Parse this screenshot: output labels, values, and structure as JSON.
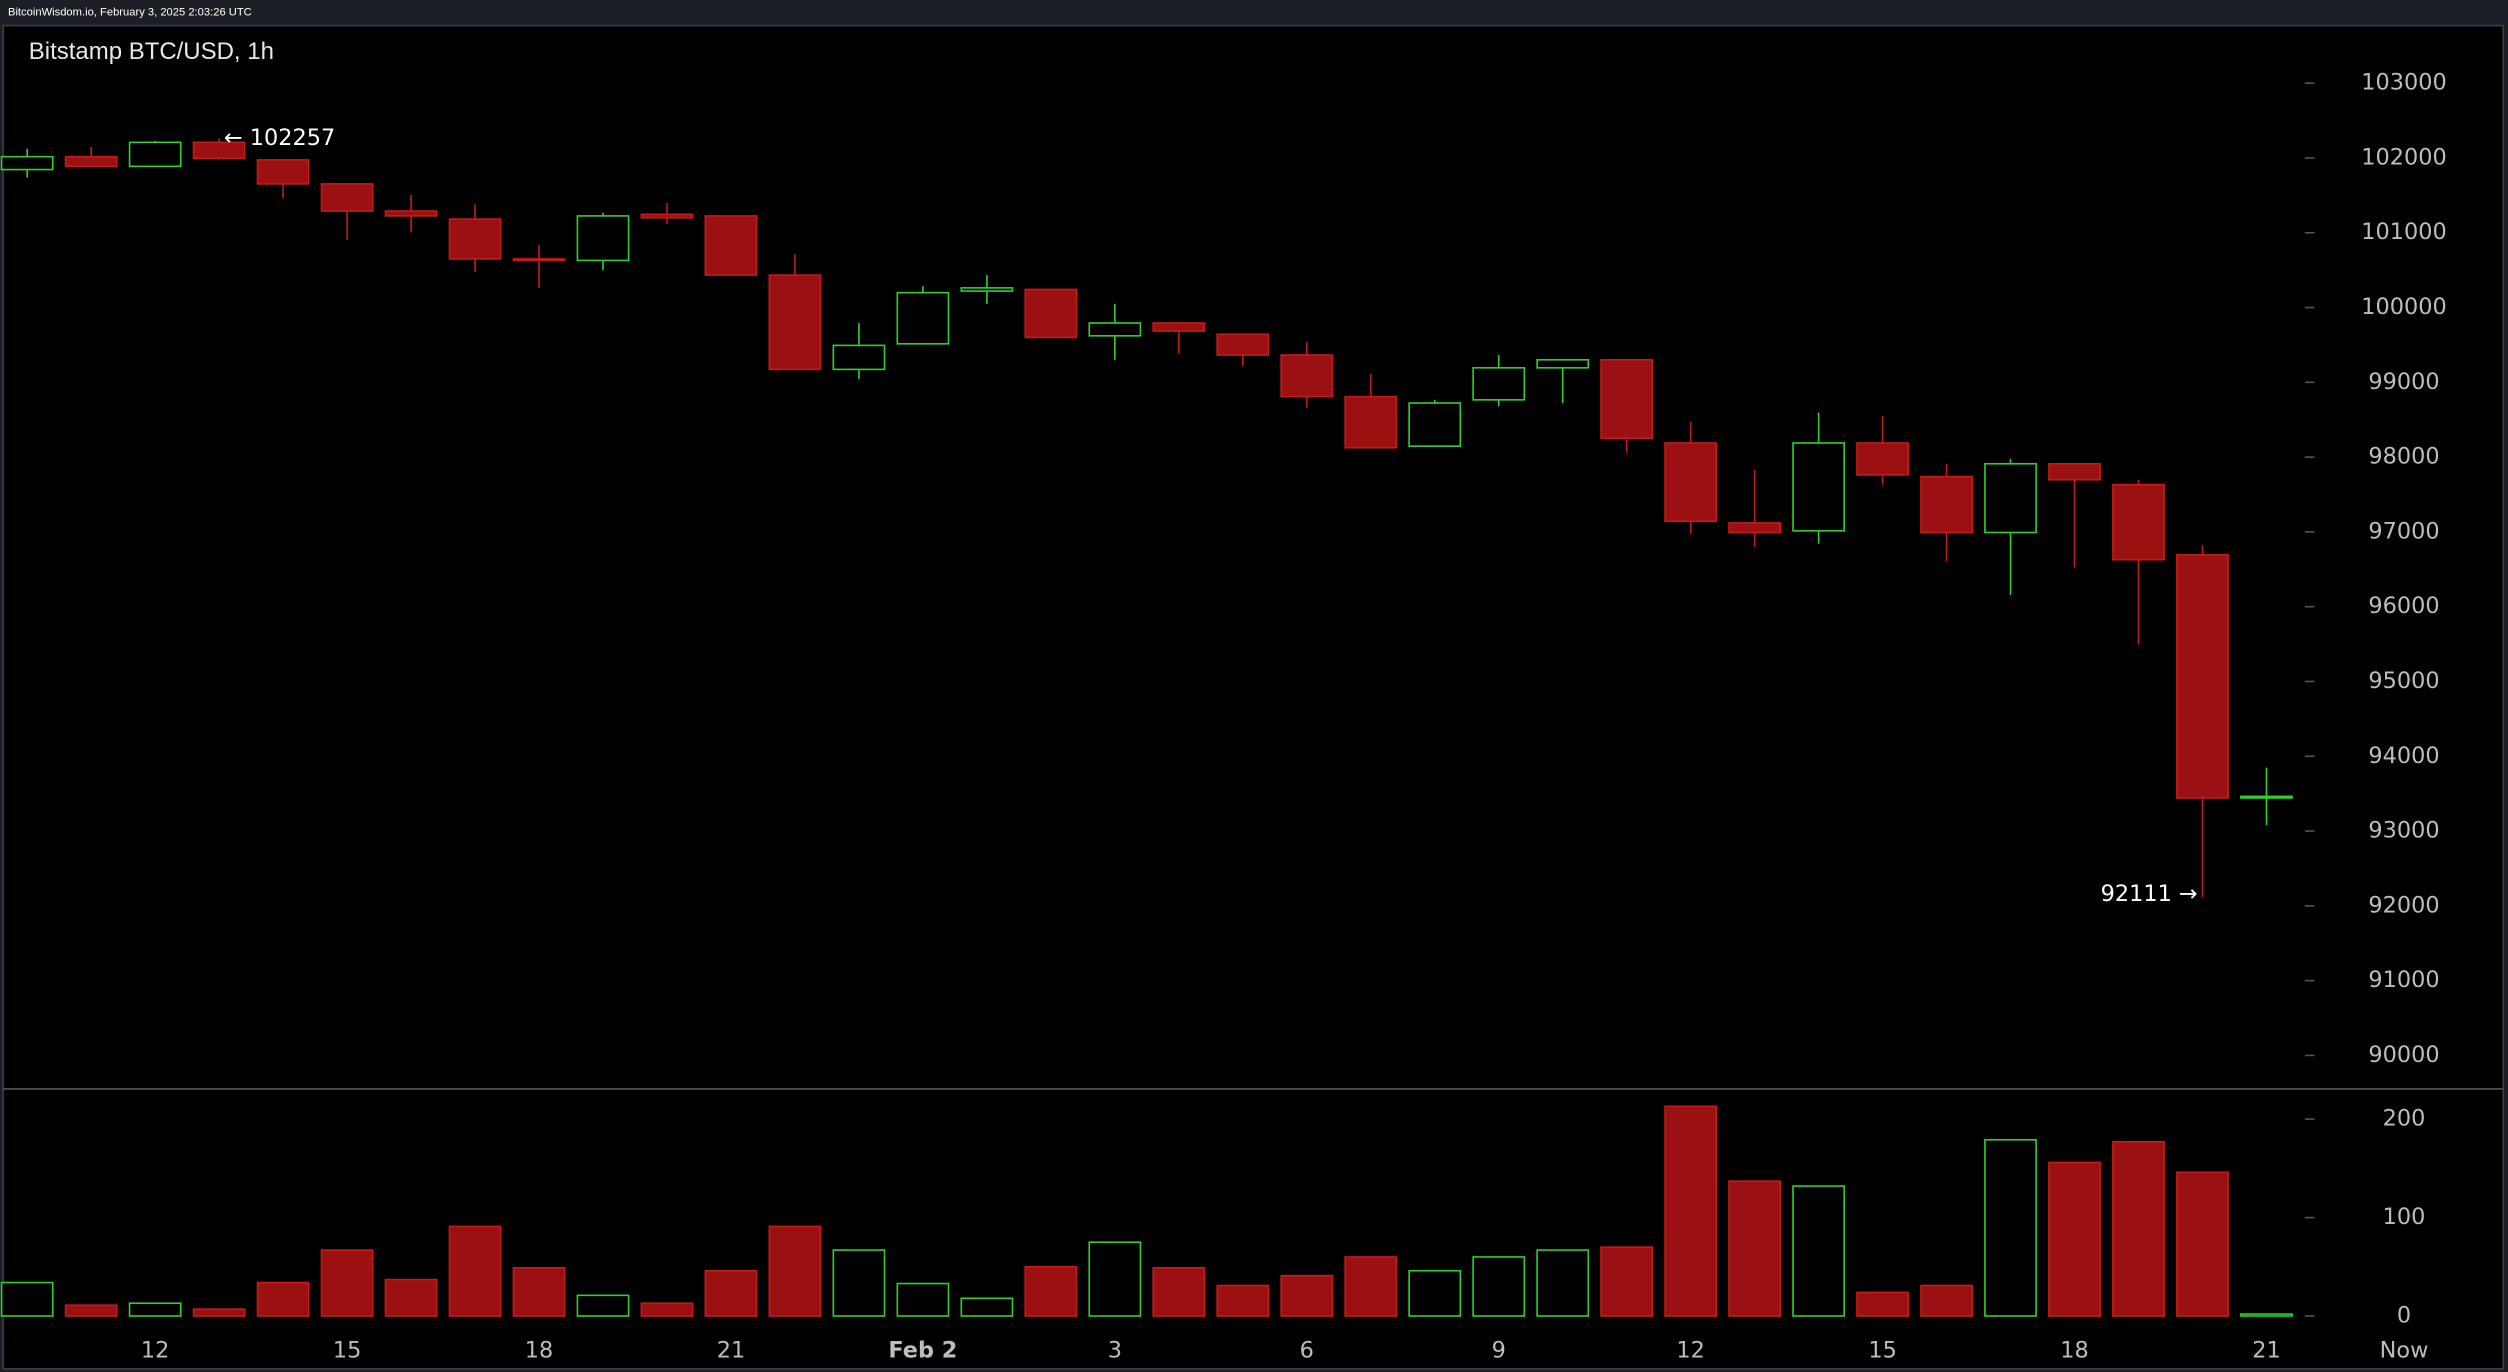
{
  "header": {
    "text": "BitcoinWisdom.io, February 3, 2025 2:03:26 UTC"
  },
  "chart_data": {
    "type": "candlestick",
    "title": "Bitstamp BTC/USD, 1h",
    "categories": [
      null,
      null,
      "12",
      null,
      null,
      "15",
      null,
      null,
      "18",
      null,
      null,
      "21",
      null,
      null,
      "Feb 2",
      null,
      null,
      "3",
      null,
      null,
      "6",
      null,
      null,
      "9",
      null,
      null,
      "12",
      null,
      null,
      "15",
      null,
      null,
      "18",
      null,
      null,
      "21"
    ],
    "now_label": "Now",
    "open": [
      101845,
      102017,
      101888,
      102209,
      101974,
      101653,
      101290,
      101183,
      100650,
      100630,
      101246,
      101225,
      100434,
      99173,
      99515,
      100220,
      100242,
      99622,
      99793,
      99643,
      99365,
      98809,
      98146,
      98766,
      99194,
      99301,
      98189,
      97120,
      97014,
      98189,
      97740,
      96992,
      97911,
      97633,
      96693,
      93443
    ],
    "high": [
      102123,
      102145,
      102230,
      102257,
      101974,
      101653,
      101503,
      101375,
      100840,
      101268,
      101396,
      101225,
      100712,
      99793,
      100285,
      100434,
      100242,
      100050,
      99808,
      99643,
      99536,
      99109,
      98766,
      99365,
      99301,
      99301,
      98467,
      97826,
      98595,
      98553,
      97911,
      97975,
      97911,
      97697,
      96821,
      93849
    ],
    "low": [
      101738,
      101888,
      101888,
      101974,
      101460,
      100905,
      101010,
      100477,
      100263,
      100500,
      101118,
      100434,
      99173,
      99045,
      99515,
      100050,
      99600,
      99300,
      99387,
      99215,
      98660,
      98125,
      98146,
      98681,
      98724,
      98061,
      96970,
      96800,
      96842,
      97633,
      96607,
      96158,
      96521,
      95495,
      92111,
      93079
    ],
    "close": [
      102017,
      101888,
      102209,
      101995,
      101653,
      101290,
      101225,
      100650,
      100630,
      101225,
      101200,
      100434,
      99173,
      99494,
      100199,
      100263,
      99600,
      99793,
      99686,
      99365,
      98809,
      98125,
      98723,
      99194,
      99301,
      98253,
      97142,
      96992,
      98189,
      97762,
      96992,
      97911,
      97697,
      96628,
      93443,
      93464
    ],
    "volume": [
      34,
      11,
      13,
      7,
      34,
      67,
      37,
      91,
      49,
      21,
      13,
      46,
      91,
      67,
      33,
      18,
      50,
      75,
      49,
      31,
      41,
      60,
      46,
      60,
      67,
      70,
      213,
      137,
      132,
      24,
      31,
      179,
      156,
      177,
      146,
      2
    ],
    "up_color": "#2fd12f",
    "down_color": "#9b1010",
    "ylim": [
      89573,
      103770
    ],
    "yticks": [
      90000,
      91000,
      92000,
      93000,
      94000,
      95000,
      96000,
      97000,
      98000,
      99000,
      100000,
      101000,
      102000,
      103000
    ],
    "volume_ylim": [
      0,
      229
    ],
    "volume_yticks": [
      0,
      100,
      200
    ],
    "annotations": [
      {
        "label": "← 102257",
        "value": 102257
      },
      {
        "label": "92111 →",
        "value": 92111
      }
    ]
  }
}
